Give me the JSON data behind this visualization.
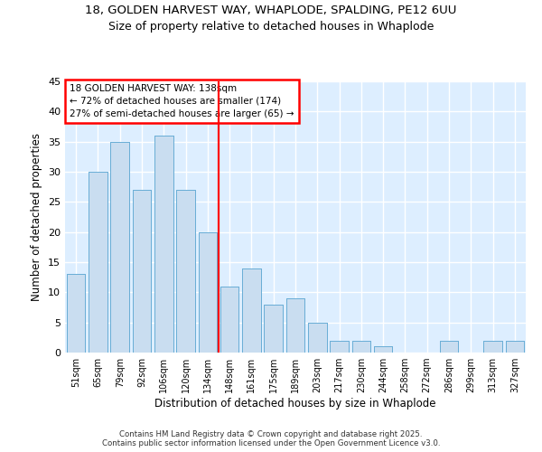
{
  "title_line1": "18, GOLDEN HARVEST WAY, WHAPLODE, SPALDING, PE12 6UU",
  "title_line2": "Size of property relative to detached houses in Whaplode",
  "xlabel": "Distribution of detached houses by size in Whaplode",
  "ylabel": "Number of detached properties",
  "categories": [
    "51sqm",
    "65sqm",
    "79sqm",
    "92sqm",
    "106sqm",
    "120sqm",
    "134sqm",
    "148sqm",
    "161sqm",
    "175sqm",
    "189sqm",
    "203sqm",
    "217sqm",
    "230sqm",
    "244sqm",
    "258sqm",
    "272sqm",
    "286sqm",
    "299sqm",
    "313sqm",
    "327sqm"
  ],
  "values": [
    13,
    30,
    35,
    27,
    36,
    27,
    20,
    11,
    14,
    8,
    9,
    5,
    2,
    2,
    1,
    0,
    0,
    2,
    0,
    2,
    2
  ],
  "bar_color": "#c9ddf0",
  "bar_edge_color": "#6aaed6",
  "red_line_index": 7,
  "annotation_title": "18 GOLDEN HARVEST WAY: 138sqm",
  "annotation_line1": "← 72% of detached houses are smaller (174)",
  "annotation_line2": "27% of semi-detached houses are larger (65) →",
  "ylim": [
    0,
    45
  ],
  "yticks": [
    0,
    5,
    10,
    15,
    20,
    25,
    30,
    35,
    40,
    45
  ],
  "fig_background": "#ffffff",
  "plot_background": "#ddeeff",
  "grid_color": "#ffffff",
  "footer_line1": "Contains HM Land Registry data © Crown copyright and database right 2025.",
  "footer_line2": "Contains public sector information licensed under the Open Government Licence v3.0."
}
